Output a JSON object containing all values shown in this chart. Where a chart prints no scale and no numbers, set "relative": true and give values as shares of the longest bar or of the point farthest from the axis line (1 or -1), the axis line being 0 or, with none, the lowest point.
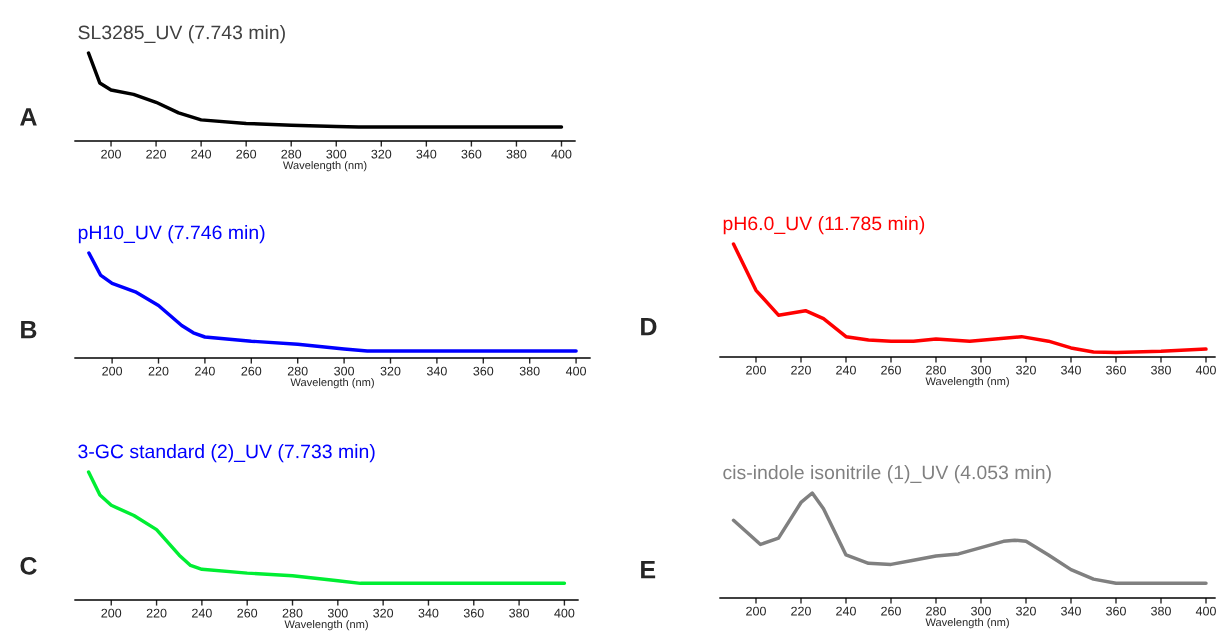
{
  "chart_data": [
    {
      "type": "line",
      "title": "SL3285_UV (7.743 min)",
      "xlabel": "Wavelength (nm)",
      "annotations": [
        "A"
      ],
      "relative": true,
      "xlim": [
        184,
        406
      ],
      "xticks": [
        200,
        220,
        240,
        260,
        280,
        300,
        320,
        340,
        360,
        380,
        400
      ],
      "tick_labels": "x",
      "grid": false,
      "series": [
        {
          "color": "#000000",
          "x": [
            190,
            195,
            200,
            210,
            220,
            230,
            240,
            260,
            280,
            300,
            310,
            400
          ],
          "values": [
            1,
            0.66,
            0.58,
            0.53,
            0.44,
            0.32,
            0.24,
            0.2,
            0.18,
            0.165,
            0.16,
            0.16
          ]
        }
      ]
    },
    {
      "type": "line",
      "title": "pH10_UV (7.746 min)",
      "xlabel": "Wavelength (nm)",
      "annotations": [
        "B"
      ],
      "relative": true,
      "xlim": [
        184,
        406
      ],
      "xticks": [
        200,
        220,
        240,
        260,
        280,
        300,
        320,
        340,
        360,
        380,
        400
      ],
      "tick_labels": "x",
      "grid": false,
      "series": [
        {
          "color": "#0000ff",
          "x": [
            190,
            195,
            200,
            210,
            220,
            230,
            235,
            240,
            260,
            280,
            300,
            310,
            400
          ],
          "values": [
            1,
            0.79,
            0.71,
            0.63,
            0.5,
            0.31,
            0.24,
            0.2,
            0.16,
            0.13,
            0.086,
            0.067,
            0.067
          ]
        }
      ]
    },
    {
      "type": "line",
      "title": "3-GC standard (2)_UV (7.733 min)",
      "xlabel": "Wavelength (nm)",
      "annotations": [
        "C"
      ],
      "relative": true,
      "xlim": [
        184,
        406
      ],
      "xticks": [
        200,
        220,
        240,
        260,
        280,
        300,
        320,
        340,
        360,
        380,
        400
      ],
      "tick_labels": "x",
      "grid": false,
      "series": [
        {
          "color": "#00ee33",
          "x": [
            190,
            195,
            200,
            210,
            220,
            230,
            235,
            240,
            260,
            280,
            300,
            310,
            400
          ],
          "values": [
            1,
            0.82,
            0.74,
            0.66,
            0.55,
            0.35,
            0.27,
            0.24,
            0.21,
            0.19,
            0.15,
            0.13,
            0.13
          ]
        }
      ]
    },
    {
      "type": "line",
      "title": "pH6.0_UV (11.785 min)",
      "xlabel": "Wavelength (nm)",
      "annotations": [
        "D"
      ],
      "relative": true,
      "xlim": [
        184,
        404
      ],
      "xticks": [
        200,
        220,
        240,
        260,
        280,
        300,
        320,
        340,
        360,
        380,
        400
      ],
      "tick_labels": "x",
      "grid": false,
      "series": [
        {
          "color": "#ff0000",
          "x": [
            190,
            200,
            210,
            222,
            230,
            240,
            250,
            260,
            270,
            280,
            295,
            318,
            330,
            340,
            350,
            360,
            380,
            400
          ],
          "values": [
            1,
            0.59,
            0.37,
            0.41,
            0.34,
            0.18,
            0.15,
            0.14,
            0.14,
            0.16,
            0.14,
            0.18,
            0.14,
            0.08,
            0.044,
            0.04,
            0.05,
            0.07
          ]
        }
      ]
    },
    {
      "type": "line",
      "title": "cis-indole isonitrile (1)_UV (4.053 min)",
      "xlabel": "Wavelength (nm)",
      "annotations": [
        "E"
      ],
      "relative": true,
      "xlim": [
        184,
        404
      ],
      "xticks": [
        200,
        220,
        240,
        260,
        280,
        300,
        320,
        340,
        360,
        380,
        400
      ],
      "tick_labels": "x",
      "grid": false,
      "series": [
        {
          "color": "#808080",
          "x": [
            190,
            202,
            210,
            220,
            225,
            230,
            240,
            250,
            260,
            270,
            280,
            290,
            300,
            310,
            315,
            320,
            330,
            340,
            350,
            360,
            400
          ],
          "values": [
            0.74,
            0.51,
            0.57,
            0.91,
            1,
            0.85,
            0.41,
            0.33,
            0.32,
            0.36,
            0.4,
            0.42,
            0.48,
            0.54,
            0.55,
            0.54,
            0.41,
            0.27,
            0.18,
            0.14,
            0.14
          ]
        }
      ]
    }
  ]
}
